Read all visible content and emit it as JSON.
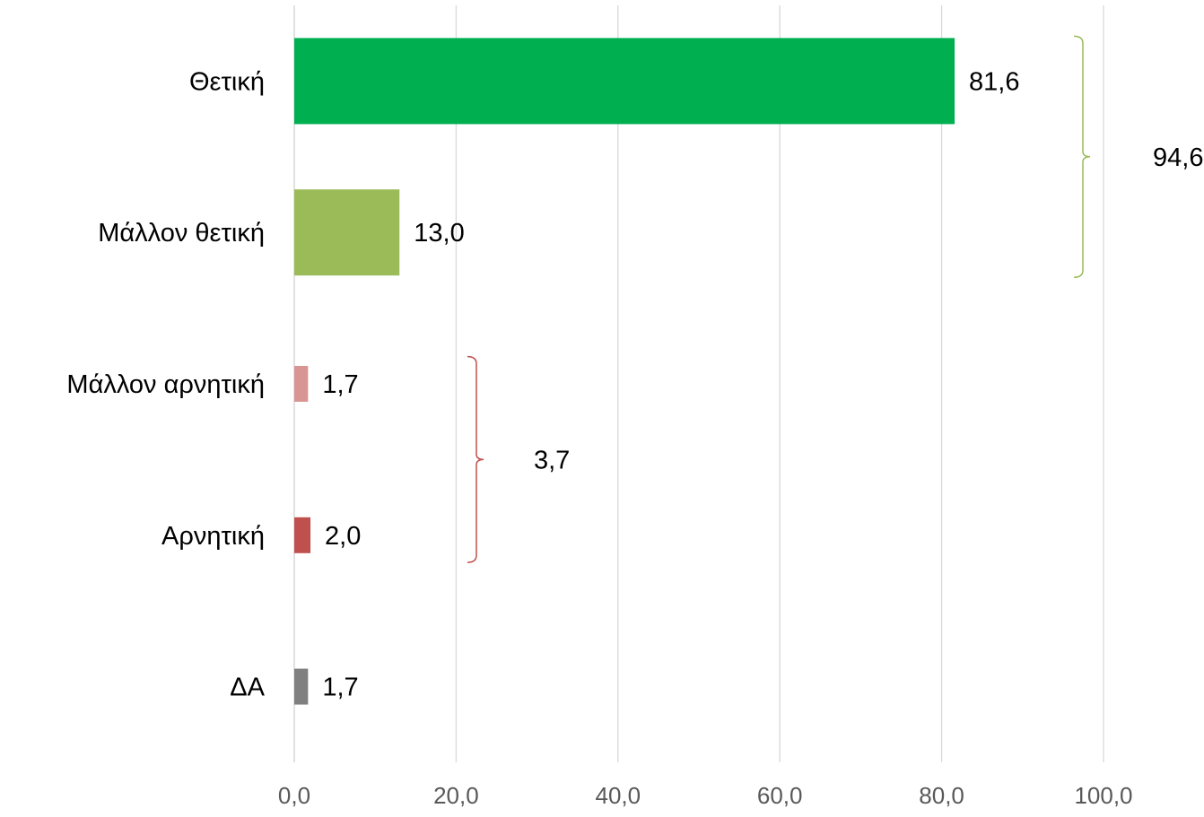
{
  "chart_data": {
    "type": "bar",
    "orientation": "horizontal",
    "categories": [
      "Θετική",
      "Μάλλον θετική",
      "Μάλλον αρνητική",
      "Αρνητική",
      "ΔΑ"
    ],
    "values": [
      81.6,
      13.0,
      1.7,
      2.0,
      1.7
    ],
    "value_labels": [
      "81,6",
      "13,0",
      "1,7",
      "2,0",
      "1,7"
    ],
    "bar_colors": [
      "#00b050",
      "#9bbb59",
      "#d99594",
      "#c0504d",
      "#808080"
    ],
    "xlim": [
      0,
      100
    ],
    "x_ticks": [
      0,
      20,
      40,
      60,
      80,
      100
    ],
    "x_tick_labels": [
      "0,0",
      "20,0",
      "40,0",
      "60,0",
      "80,0",
      "100,0"
    ],
    "grid": true,
    "legend": "none",
    "title": "",
    "xlabel": "",
    "ylabel": "",
    "groups": [
      {
        "members": [
          0,
          1
        ],
        "label": "94,6",
        "color": "#9bbb59"
      },
      {
        "members": [
          2,
          3
        ],
        "label": "3,7",
        "color": "#c0504d"
      }
    ]
  }
}
